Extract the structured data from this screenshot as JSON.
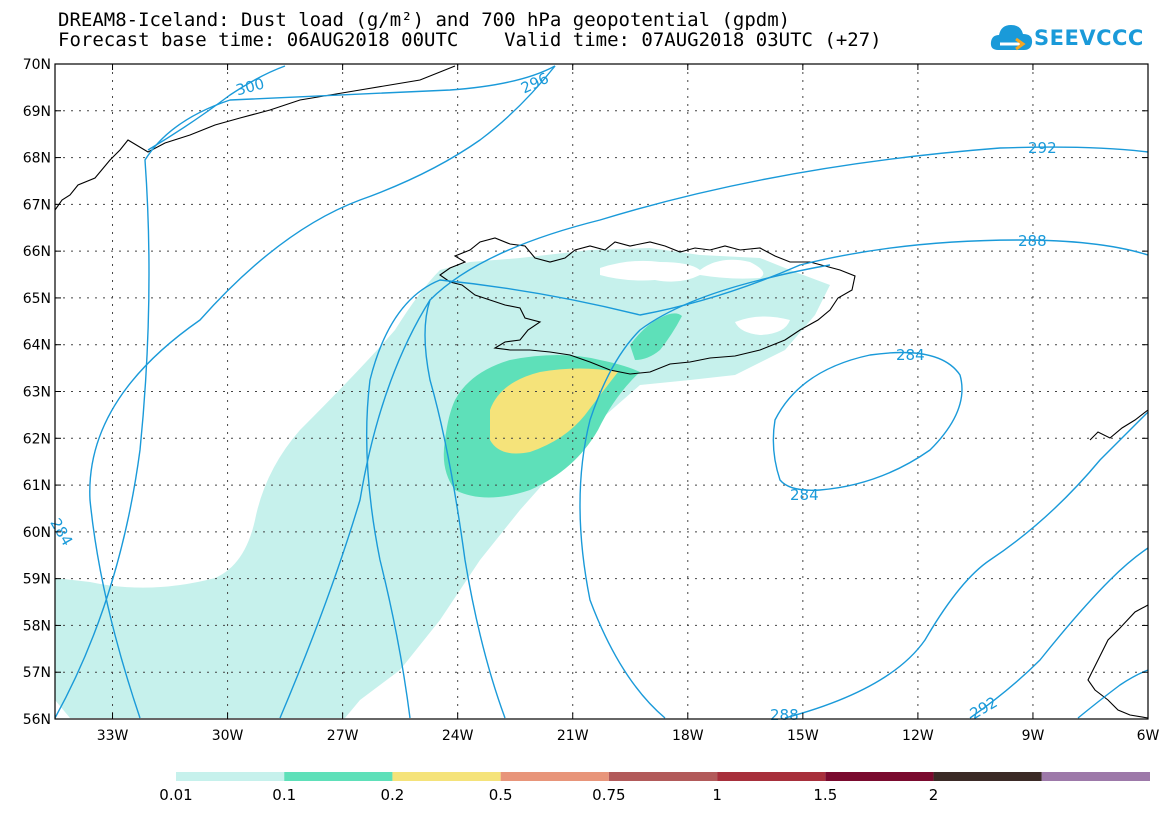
{
  "title": {
    "line1": "DREAM8-Iceland: Dust load (g/m²) and 700 hPa geopotential (gpdm)",
    "line2": "Forecast base time: 06AUG2018 00UTC    Valid time: 07AUG2018 03UTC (+27)"
  },
  "logo": {
    "text": "SEEVCCC",
    "icon": "cloud-logo-icon",
    "color": "#1a9ad9"
  },
  "axes": {
    "lon_labels": [
      "33W",
      "30W",
      "27W",
      "24W",
      "21W",
      "18W",
      "15W",
      "12W",
      "9W",
      "6W"
    ],
    "lat_labels": [
      "70N",
      "69N",
      "68N",
      "67N",
      "66N",
      "65N",
      "64N",
      "63N",
      "62N",
      "61N",
      "60N",
      "59N",
      "58N",
      "57N",
      "56N"
    ]
  },
  "contours": {
    "color": "#1a9ad9",
    "labels": [
      "300",
      "296",
      "292",
      "288",
      "284",
      "284",
      "288",
      "292",
      "284"
    ]
  },
  "colorbar": {
    "colors": [
      "#c6f1ec",
      "#5ee0b9",
      "#f5e37a",
      "#e8957a",
      "#b25a5a",
      "#a72f3b",
      "#7a0a2e",
      "#3b2a26",
      "#9d79a9"
    ],
    "labels": [
      "0.01",
      "0.1",
      "0.2",
      "0.5",
      "0.75",
      "1",
      "1.5",
      "2"
    ]
  },
  "chart_data": {
    "type": "heatmap",
    "title": "DREAM8-Iceland: Dust load (g/m²) and 700 hPa geopotential (gpdm)",
    "subtitle": "Forecast base time: 06AUG2018 00UTC    Valid time: 07AUG2018 03UTC (+27)",
    "x_ticks": [
      "33W",
      "30W",
      "27W",
      "24W",
      "21W",
      "18W",
      "15W",
      "12W",
      "9W",
      "6W"
    ],
    "y_ticks": [
      "70N",
      "69N",
      "68N",
      "67N",
      "66N",
      "65N",
      "64N",
      "63N",
      "62N",
      "61N",
      "60N",
      "59N",
      "58N",
      "57N",
      "56N"
    ],
    "xlim": [
      -34.5,
      -6
    ],
    "ylim": [
      56,
      70
    ],
    "grid": true,
    "legend": "bottom",
    "dust_levels": [
      0.01,
      0.1,
      0.2,
      0.5,
      0.75,
      1,
      1.5,
      2
    ],
    "geopotential_contours_gpdm": [
      284,
      288,
      292,
      296,
      300
    ]
  }
}
